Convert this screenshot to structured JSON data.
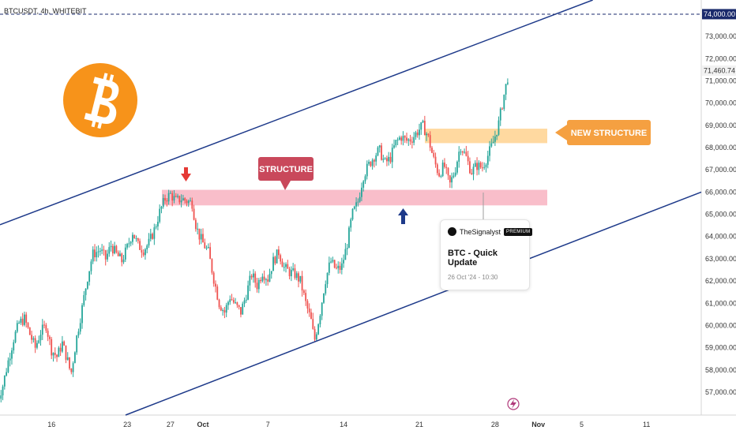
{
  "header": {
    "symbol_label": "BTCUSDT, 4h, WHITEBIT"
  },
  "price_axis": {
    "ticks": [
      {
        "value": 57000,
        "label": "57,000.00"
      },
      {
        "value": 58000,
        "label": "58,000.00"
      },
      {
        "value": 59000,
        "label": "59,000.00"
      },
      {
        "value": 60000,
        "label": "60,000.00"
      },
      {
        "value": 61000,
        "label": "61,000.00"
      },
      {
        "value": 62000,
        "label": "62,000.00"
      },
      {
        "value": 63000,
        "label": "63,000.00"
      },
      {
        "value": 64000,
        "label": "64,000.00"
      },
      {
        "value": 65000,
        "label": "65,000.00"
      },
      {
        "value": 66000,
        "label": "66,000.00"
      },
      {
        "value": 67000,
        "label": "67,000.00"
      },
      {
        "value": 68000,
        "label": "68,000.00"
      },
      {
        "value": 69000,
        "label": "69,000.00"
      },
      {
        "value": 70000,
        "label": "70,000.00"
      },
      {
        "value": 71000,
        "label": "71,000.00"
      },
      {
        "value": 72000,
        "label": "72,000.00"
      },
      {
        "value": 73000,
        "label": "73,000.00"
      }
    ],
    "current_price": {
      "value": 71460.74,
      "label": "71,460.74"
    },
    "target_price": {
      "value": 74000,
      "label": "74,000.00"
    }
  },
  "time_axis": {
    "ticks": [
      {
        "day": 16,
        "label": "16"
      },
      {
        "day": 23,
        "label": "23"
      },
      {
        "day": 27,
        "label": "27"
      },
      {
        "day": 30,
        "label": "Oct"
      },
      {
        "day": 36,
        "label": "7"
      },
      {
        "day": 43,
        "label": "14"
      },
      {
        "day": 50,
        "label": "21"
      },
      {
        "day": 57,
        "label": "28"
      },
      {
        "day": 61,
        "label": "Nov"
      },
      {
        "day": 65,
        "label": "5"
      },
      {
        "day": 71,
        "label": "11"
      }
    ]
  },
  "annotations": {
    "structure_label": "STRUCTURE",
    "new_structure_label": "NEW STRUCTURE",
    "structure_zone": [
      65400,
      66100
    ],
    "new_structure_zone": [
      68200,
      68850
    ]
  },
  "idea_card": {
    "author": "TheSignalyst",
    "badge": "PREMIUM",
    "title": "BTC - Quick Update",
    "date": "26 Oct '24 - 10:30"
  },
  "chart_data": {
    "type": "candlestick",
    "title": "BTCUSDT, 4h, WHITEBIT",
    "x_unit": "day index (16 = Sep 16, 30 = Sep 30, 31 = Oct 1)",
    "ylim": [
      56000,
      74600
    ],
    "colors": {
      "up": "#26a69a",
      "down": "#ef5350",
      "channel": "#1e3a8a",
      "structure_zone": "#f48fb1",
      "new_structure_zone": "#ffcc80",
      "bitcoin": "#f7931a"
    },
    "channel": {
      "upper": [
        [
          10,
          64300
        ],
        [
          68,
          75000
        ]
      ],
      "lower": [
        [
          23,
          56000
        ],
        [
          75,
          65800
        ]
      ]
    },
    "close_path": [
      [
        11.0,
        56600
      ],
      [
        11.5,
        57300
      ],
      [
        12.0,
        58400
      ],
      [
        12.5,
        59400
      ],
      [
        13.0,
        60100
      ],
      [
        13.5,
        60300
      ],
      [
        14.0,
        59600
      ],
      [
        14.5,
        59000
      ],
      [
        15.0,
        59700
      ],
      [
        15.5,
        60000
      ],
      [
        16.0,
        58900
      ],
      [
        16.5,
        58600
      ],
      [
        17.0,
        59200
      ],
      [
        17.5,
        58400
      ],
      [
        17.8,
        57800
      ],
      [
        18.3,
        59400
      ],
      [
        18.8,
        60700
      ],
      [
        19.3,
        62100
      ],
      [
        19.8,
        63200
      ],
      [
        20.5,
        63400
      ],
      [
        21.0,
        63000
      ],
      [
        21.5,
        63600
      ],
      [
        22.0,
        63200
      ],
      [
        22.5,
        62900
      ],
      [
        23.0,
        63500
      ],
      [
        23.5,
        64200
      ],
      [
        24.0,
        63600
      ],
      [
        24.5,
        63400
      ],
      [
        25.0,
        63700
      ],
      [
        25.5,
        64300
      ],
      [
        26.0,
        65100
      ],
      [
        26.5,
        65700
      ],
      [
        27.0,
        65900
      ],
      [
        27.5,
        65600
      ],
      [
        28.0,
        65700
      ],
      [
        28.5,
        65600
      ],
      [
        29.0,
        65500
      ],
      [
        29.3,
        64600
      ],
      [
        29.6,
        64100
      ],
      [
        30.0,
        63700
      ],
      [
        30.5,
        63300
      ],
      [
        31.0,
        62100
      ],
      [
        31.5,
        61000
      ],
      [
        32.0,
        60600
      ],
      [
        32.5,
        61300
      ],
      [
        33.0,
        60900
      ],
      [
        33.5,
        60600
      ],
      [
        34.0,
        61400
      ],
      [
        34.5,
        62300
      ],
      [
        35.0,
        61800
      ],
      [
        35.5,
        62400
      ],
      [
        36.0,
        62100
      ],
      [
        36.5,
        62900
      ],
      [
        37.0,
        63300
      ],
      [
        37.5,
        62600
      ],
      [
        38.0,
        62400
      ],
      [
        38.5,
        62300
      ],
      [
        39.0,
        62000
      ],
      [
        39.5,
        61000
      ],
      [
        40.0,
        60200
      ],
      [
        40.3,
        59300
      ],
      [
        40.8,
        60500
      ],
      [
        41.3,
        62000
      ],
      [
        41.8,
        62900
      ],
      [
        42.3,
        62500
      ],
      [
        42.8,
        62600
      ],
      [
        43.3,
        63600
      ],
      [
        43.8,
        65000
      ],
      [
        44.3,
        65500
      ],
      [
        44.8,
        66700
      ],
      [
        45.3,
        67200
      ],
      [
        45.8,
        67600
      ],
      [
        46.3,
        67900
      ],
      [
        46.8,
        67300
      ],
      [
        47.3,
        67500
      ],
      [
        47.8,
        68200
      ],
      [
        48.3,
        68500
      ],
      [
        48.8,
        68300
      ],
      [
        49.3,
        68400
      ],
      [
        49.8,
        68700
      ],
      [
        50.3,
        69000
      ],
      [
        50.8,
        68500
      ],
      [
        51.3,
        67500
      ],
      [
        51.8,
        66800
      ],
      [
        52.3,
        67200
      ],
      [
        52.8,
        66300
      ],
      [
        53.3,
        67000
      ],
      [
        53.8,
        68100
      ],
      [
        54.3,
        67600
      ],
      [
        54.8,
        66900
      ],
      [
        55.3,
        67200
      ],
      [
        55.8,
        67100
      ],
      [
        56.3,
        67600
      ],
      [
        56.8,
        68200
      ],
      [
        57.3,
        69000
      ],
      [
        57.8,
        70300
      ],
      [
        58.3,
        71460
      ]
    ]
  }
}
